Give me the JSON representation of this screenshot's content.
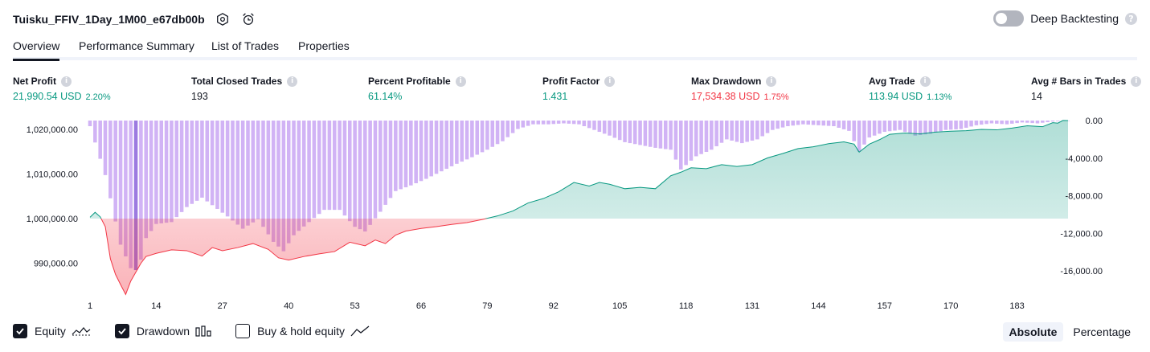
{
  "header": {
    "title": "Tuisku_FFIV_1Day_1M00_e67db00b",
    "settings_icon": "gear-icon",
    "alert_icon": "alarm-clock-add-icon"
  },
  "deep_backtesting": {
    "label": "Deep Backtesting",
    "enabled": false
  },
  "tabs": [
    {
      "label": "Overview",
      "active": true
    },
    {
      "label": "Performance Summary",
      "active": false
    },
    {
      "label": "List of Trades",
      "active": false
    },
    {
      "label": "Properties",
      "active": false
    }
  ],
  "metrics": {
    "net_profit": {
      "label": "Net Profit",
      "value": "21,990.54 USD",
      "pct": "2.20%"
    },
    "total_closed_trades": {
      "label": "Total Closed Trades",
      "value": "193"
    },
    "percent_profitable": {
      "label": "Percent Profitable",
      "value": "61.14%"
    },
    "profit_factor": {
      "label": "Profit Factor",
      "value": "1.431"
    },
    "max_drawdown": {
      "label": "Max Drawdown",
      "value": "17,534.38 USD",
      "pct": "1.75%"
    },
    "avg_trade": {
      "label": "Avg Trade",
      "value": "113.94 USD",
      "pct": "1.13%"
    },
    "avg_bars": {
      "label": "Avg # Bars in Trades",
      "value": "14"
    }
  },
  "legend": {
    "equity": {
      "label": "Equity",
      "checked": true
    },
    "drawdown": {
      "label": "Drawdown",
      "checked": true
    },
    "buy_hold": {
      "label": "Buy & hold equity",
      "checked": false
    }
  },
  "modes": {
    "absolute": "Absolute",
    "percentage": "Percentage",
    "active": "Absolute"
  },
  "colors": {
    "equity_positive": "#089981",
    "equity_negative": "#f23645",
    "drawdown_bar": "#d1b3f5",
    "drawdown_bar_stroke": "#b995ed",
    "max_dd_bar": "#9c7ae0"
  },
  "chart_data": {
    "type": "area",
    "title": "",
    "x_ticks": [
      1,
      14,
      27,
      40,
      53,
      66,
      79,
      92,
      105,
      118,
      131,
      144,
      157,
      170,
      183
    ],
    "left_axis": {
      "ticks": [
        1020000,
        1010000,
        1000000,
        990000
      ],
      "labels": [
        "1,020,000.00",
        "1,010,000.00",
        "1,000,000.00",
        "990,000.00"
      ],
      "baseline": 1000000
    },
    "right_axis": {
      "ticks": [
        0,
        -4000,
        -8000,
        -12000,
        -16000
      ],
      "labels": [
        "0.00",
        "-4,000.00",
        "-8,000.00",
        "-12,000.00",
        "-16,000.00"
      ]
    },
    "series": [
      {
        "name": "Equity",
        "x": [
          1,
          2,
          3,
          4,
          5,
          6,
          7,
          8,
          9,
          10,
          11,
          12,
          14,
          17,
          20,
          23,
          25,
          27,
          30,
          33,
          36,
          38,
          40,
          43,
          46,
          49,
          52,
          55,
          57,
          59,
          61,
          63,
          66,
          69,
          72,
          75,
          78,
          81,
          84,
          87,
          90,
          93,
          96,
          99,
          101,
          103,
          106,
          109,
          112,
          115,
          117,
          119,
          122,
          125,
          128,
          131,
          134,
          137,
          140,
          143,
          146,
          149,
          151,
          152,
          154,
          156,
          158,
          161,
          164,
          167,
          170,
          173,
          176,
          179,
          182,
          185,
          188,
          190,
          191,
          192,
          193
        ],
        "values": [
          1000300,
          1001400,
          1000400,
          998200,
          991000,
          987500,
          985200,
          983000,
          986000,
          988000,
          990000,
          991500,
          992200,
          993000,
          992800,
          991600,
          993500,
          992800,
          993500,
          994400,
          993100,
          991200,
          990700,
          991500,
          992100,
          992600,
          994700,
          993900,
          995200,
          994400,
          996300,
          997200,
          997800,
          998200,
          998700,
          999100,
          999800,
          1000600,
          1001700,
          1003500,
          1004500,
          1006000,
          1008100,
          1007300,
          1008100,
          1007700,
          1006700,
          1007000,
          1006700,
          1009600,
          1010400,
          1011400,
          1011200,
          1012100,
          1011700,
          1012100,
          1013600,
          1014600,
          1015700,
          1016100,
          1016800,
          1017200,
          1016700,
          1014900,
          1016700,
          1017700,
          1018900,
          1019200,
          1019000,
          1019400,
          1019600,
          1019700,
          1020000,
          1019900,
          1020300,
          1020800,
          1020600,
          1021500,
          1021400,
          1022000,
          1021990
        ]
      },
      {
        "name": "Drawdown",
        "x": [
          1,
          4,
          7,
          9,
          10,
          11,
          12,
          14,
          17,
          20,
          23,
          26,
          28,
          31,
          34,
          37,
          39,
          41,
          44,
          47,
          50,
          53,
          55,
          58,
          61,
          64,
          67,
          70,
          73,
          76,
          79,
          82,
          85,
          88,
          91,
          94,
          97,
          100,
          103,
          106,
          109,
          112,
          115,
          117,
          120,
          123,
          126,
          129,
          132,
          135,
          138,
          141,
          144,
          147,
          150,
          152,
          154,
          157,
          160,
          163,
          166,
          169,
          172,
          175,
          178,
          181,
          184,
          187,
          190,
          193
        ],
        "values": [
          -600,
          -5800,
          -13200,
          -15700,
          -15900,
          -14800,
          -12500,
          -11000,
          -10800,
          -9200,
          -8200,
          -9400,
          -10200,
          -11500,
          -10500,
          -12900,
          -13900,
          -12200,
          -10800,
          -9500,
          -9500,
          -11300,
          -11800,
          -9700,
          -7500,
          -6900,
          -6200,
          -5400,
          -4600,
          -3900,
          -3100,
          -2200,
          -900,
          -400,
          -400,
          -300,
          -400,
          -1000,
          -1600,
          -2300,
          -2600,
          -2900,
          -3100,
          -5200,
          -3800,
          -3100,
          -2000,
          -2400,
          -2000,
          -1000,
          -600,
          -400,
          -500,
          -600,
          -1100,
          -3300,
          -1800,
          -1200,
          -1000,
          -1600,
          -1400,
          -1000,
          -900,
          -500,
          -300,
          -400,
          -200,
          -300,
          -100,
          0
        ]
      }
    ]
  }
}
